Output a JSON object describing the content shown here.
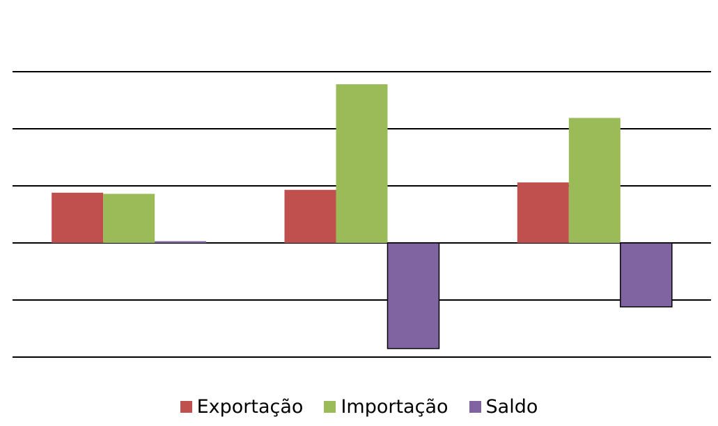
{
  "chart_data": {
    "type": "bar",
    "title": "",
    "xlabel": "",
    "ylabel": "",
    "categories": [
      "",
      "",
      ""
    ],
    "ylim": [
      -3,
      3
    ],
    "grid": true,
    "legend_position": "bottom",
    "series": [
      {
        "name": "Exportação",
        "color": "#c0504d",
        "values": [
          0.88,
          0.93,
          1.06
        ]
      },
      {
        "name": "Importação",
        "color": "#9bbb59",
        "values": [
          0.86,
          2.78,
          2.19
        ]
      },
      {
        "name": "Saldo",
        "color": "#8064a2",
        "values": [
          0.03,
          -1.85,
          -1.12
        ]
      }
    ]
  }
}
